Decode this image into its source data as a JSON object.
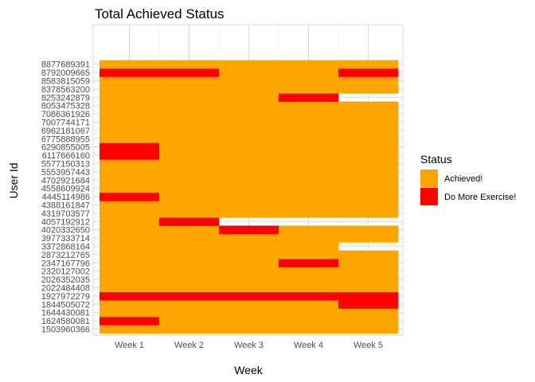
{
  "chart_data": {
    "type": "heatmap",
    "title": "Total Achieved Status",
    "xlabel": "Week",
    "ylabel": "User Id",
    "x": [
      "Week 1",
      "Week 2",
      "Week 3",
      "Week 4",
      "Week 5"
    ],
    "y": [
      "1503960366",
      "1624580081",
      "1644430081",
      "1844505072",
      "1927972279",
      "2022484408",
      "2026352035",
      "2320127002",
      "2347167796",
      "2873212765",
      "3372868164",
      "3977333714",
      "4020332650",
      "4057192912",
      "4319703577",
      "4388161847",
      "4445114986",
      "4558609924",
      "4702921684",
      "5553957443",
      "5577150313",
      "6117666160",
      "6290855005",
      "6775888955",
      "6962181067",
      "7007744171",
      "7086361926",
      "8053475328",
      "8253242879",
      "8378563200",
      "8583815059",
      "8792009665",
      "8877689391"
    ],
    "legend": {
      "title": "Status",
      "position": "right",
      "entries": [
        {
          "label": "Achieved!",
          "color": "#FFA500"
        },
        {
          "label": "Do More Exercise!",
          "color": "#FF0000"
        }
      ]
    },
    "grid": true,
    "cells": [
      [
        "A",
        "A",
        "A",
        "A",
        "A"
      ],
      [
        "D",
        "A",
        "A",
        "A",
        "A"
      ],
      [
        "A",
        "A",
        "A",
        "A",
        "A"
      ],
      [
        "A",
        "A",
        "A",
        "A",
        "D"
      ],
      [
        "D",
        "D",
        "D",
        "D",
        "D"
      ],
      [
        "A",
        "A",
        "A",
        "A",
        "A"
      ],
      [
        "A",
        "A",
        "A",
        "A",
        "A"
      ],
      [
        "A",
        "A",
        "A",
        "A",
        "A"
      ],
      [
        "A",
        "A",
        "A",
        "D",
        "A"
      ],
      [
        "A",
        "A",
        "A",
        "A",
        "A"
      ],
      [
        "A",
        "A",
        "A",
        "A",
        null
      ],
      [
        "A",
        "A",
        "A",
        "A",
        "A"
      ],
      [
        "A",
        "A",
        "D",
        "A",
        "A"
      ],
      [
        "A",
        "D",
        null,
        null,
        null
      ],
      [
        "A",
        "A",
        "A",
        "A",
        "A"
      ],
      [
        "A",
        "A",
        "A",
        "A",
        "A"
      ],
      [
        "D",
        "A",
        "A",
        "A",
        "A"
      ],
      [
        "A",
        "A",
        "A",
        "A",
        "A"
      ],
      [
        "A",
        "A",
        "A",
        "A",
        "A"
      ],
      [
        "A",
        "A",
        "A",
        "A",
        "A"
      ],
      [
        "A",
        "A",
        "A",
        "A",
        "A"
      ],
      [
        "D",
        "A",
        "A",
        "A",
        "A"
      ],
      [
        "D",
        "A",
        "A",
        "A",
        "A"
      ],
      [
        "A",
        "A",
        "A",
        "A",
        "A"
      ],
      [
        "A",
        "A",
        "A",
        "A",
        "A"
      ],
      [
        "A",
        "A",
        "A",
        "A",
        "A"
      ],
      [
        "A",
        "A",
        "A",
        "A",
        "A"
      ],
      [
        "A",
        "A",
        "A",
        "A",
        "A"
      ],
      [
        "A",
        "A",
        "A",
        "D",
        null
      ],
      [
        "A",
        "A",
        "A",
        "A",
        "A"
      ],
      [
        "A",
        "A",
        "A",
        "A",
        "A"
      ],
      [
        "D",
        "D",
        "A",
        "A",
        "D"
      ],
      [
        "A",
        "A",
        "A",
        "A",
        "A"
      ]
    ],
    "cell_codes": {
      "A": "Achieved!",
      "D": "Do More Exercise!"
    }
  }
}
